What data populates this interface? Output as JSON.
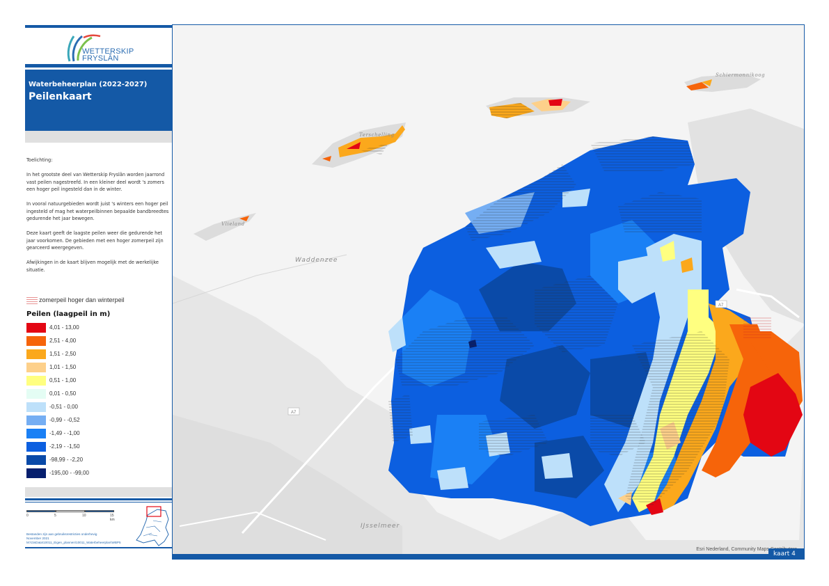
{
  "logo": {
    "line1": "WETTERSKIP",
    "line2": "FRYSLÂN"
  },
  "header": {
    "subtitle": "Waterbeheerplan (2022-2027)",
    "title": "Peilenkaart"
  },
  "explanation": {
    "heading": "Toelichting:",
    "paragraphs": [
      "In het grootste deel van Wetterskip Fryslân worden jaarrond vast peilen nagestreefd. In een kleiner deel wordt 's zomers een hoger peil ingesteld dan in de winter.",
      "In vooral natuurgebieden wordt juist 's winters een hoger peil ingesteld of mag het waterpeilbinnen bepaalde bandbreedtes gedurende het jaar bewegen.",
      "Deze kaart geeft de laagste peilen weer die gedurende het jaar voorkomen. De gebieden met een hoger zomerpeil zijn gearceerd weergegeven.",
      "Afwijkingen in de kaart blijven mogelijk met de werkelijke situatie."
    ]
  },
  "hatch_legend": {
    "label": "zomerpeil hoger dan winterpeil",
    "color": "#e89393"
  },
  "legend": {
    "title": "Peilen (laagpeil in m)",
    "items": [
      {
        "label": "4,01 - 13,00",
        "color": "#e30613"
      },
      {
        "label": "2,51 - 4,00",
        "color": "#f6640a"
      },
      {
        "label": "1,51 - 2,50",
        "color": "#fba81c"
      },
      {
        "label": "1,01 - 1,50",
        "color": "#fdd08a"
      },
      {
        "label": "0,51 - 1,00",
        "color": "#ffff80"
      },
      {
        "label": "0,01 - 0,50",
        "color": "#e4fdf4"
      },
      {
        "label": "-0,51 - 0,00",
        "color": "#bde0fa"
      },
      {
        "label": "-0,99 - -0,52",
        "color": "#75aef3"
      },
      {
        "label": "-1,49 - -1,00",
        "color": "#1a80f5"
      },
      {
        "label": "-2,19 - -1,50",
        "color": "#0c5fe0"
      },
      {
        "label": "-98,99 - -2,20",
        "color": "#0a4aa8"
      },
      {
        "label": "-195,00 - -99,00",
        "color": "#061f6e"
      }
    ]
  },
  "scalebar": {
    "ticks": [
      "0",
      "5",
      "10",
      "15 km"
    ]
  },
  "footnote": {
    "line1": "Bestanden zijn aan gebruiksrestricties onderhevig",
    "line2": "November 2021",
    "line3": "M:\\GisData\\10011_Eigen_plannen\\10011_Waterbeheerplan\\WBP5"
  },
  "map": {
    "labels": {
      "schiermonnikoog": "Schiermonnikoog",
      "terschelling": "Terschelling",
      "vlieland": "Vlieland",
      "waddenzee": "Waddenzee",
      "ijsselmeer": "IJsselmeer",
      "a7_west": "A7",
      "a7_east": "A7"
    },
    "attribution": "Esri Nederland, Community Maps Contributors",
    "kaart": "kaart 4"
  }
}
